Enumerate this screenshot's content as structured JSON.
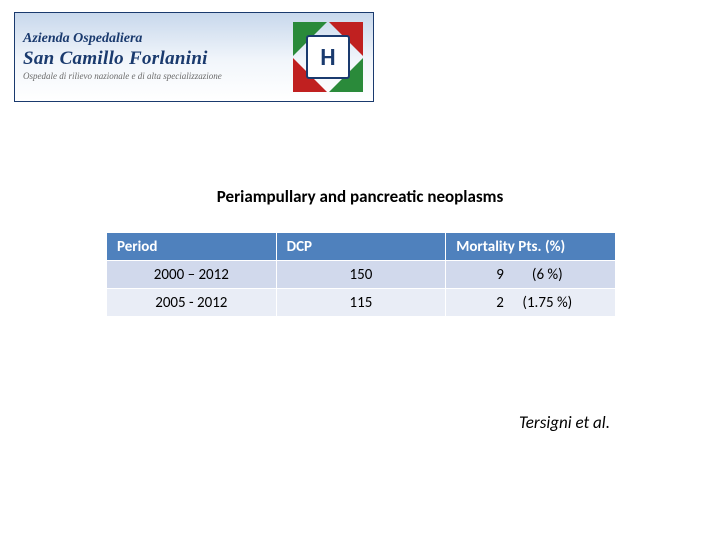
{
  "banner": {
    "line1": "Azienda Ospedaliera",
    "line2": "San Camillo Forlanini",
    "line3": "Ospedale di rilievo nazionale e di alta specializzazione",
    "logo_letter": "H",
    "border_color": "#1a3a6e",
    "bg_gradient_top": "#c8d8ec",
    "bg_gradient_bottom": "#ffffff",
    "text_color": "#1a3a6e",
    "flag_green": "#2a8a3a",
    "flag_red": "#c02020"
  },
  "title": "Periampullary and pancreatic neoplasms",
  "table": {
    "header_bg": "#4f81bd",
    "header_fg": "#ffffff",
    "row_bg_1": "#d1d9ec",
    "row_bg_2": "#e9edf6",
    "border_color": "#ffffff",
    "columns": [
      "Period",
      "DCP",
      "Mortality  Pts. (%)"
    ],
    "rows": [
      {
        "period": "2000 – 2012",
        "dcp": "150",
        "mortality_n": "9",
        "mortality_pct": "(6 %)"
      },
      {
        "period": "2005  - 2012",
        "dcp": "115",
        "mortality_n": "2",
        "mortality_pct": "(1.75 %)"
      }
    ]
  },
  "citation": "Tersigni et al."
}
